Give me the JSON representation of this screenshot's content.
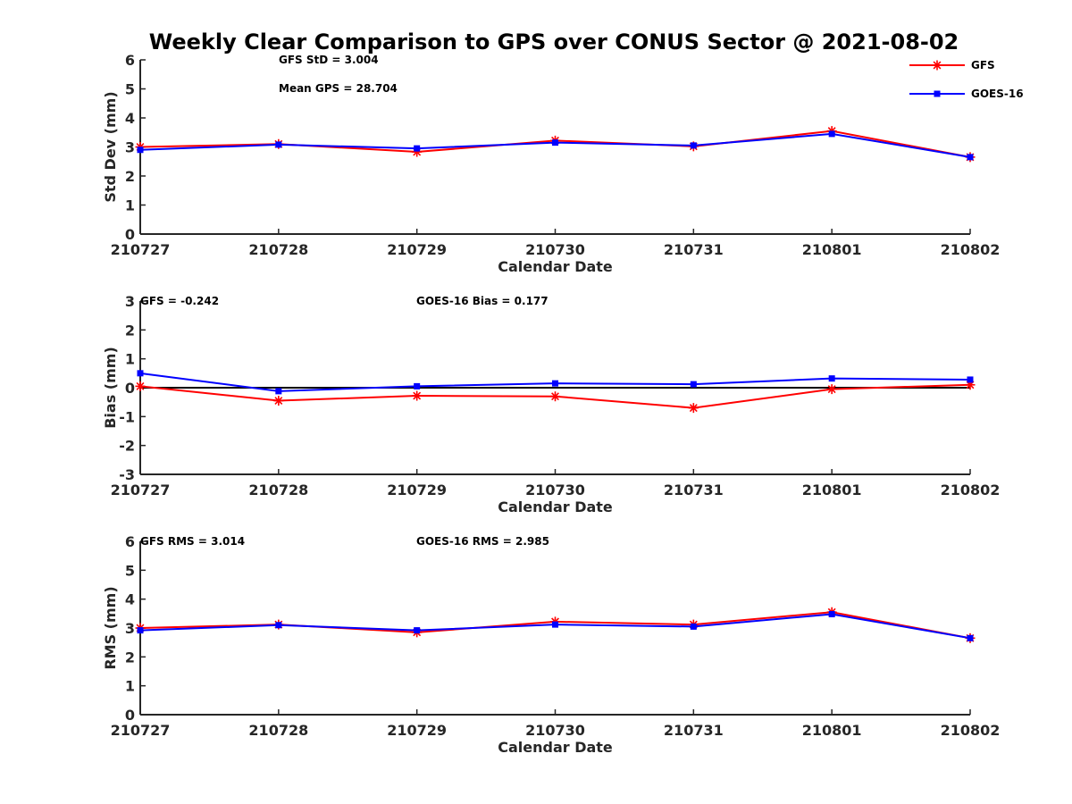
{
  "title": "Weekly Clear Comparison to GPS over CONUS Sector @ 2021-08-02",
  "colors": {
    "gfs": "#ff0000",
    "goes": "#0000ff",
    "zero_line": "#000000",
    "axis": "#262626"
  },
  "legend": {
    "position": "top-right",
    "entries": [
      "GFS",
      "GOES-16"
    ]
  },
  "chart_data": [
    {
      "type": "line",
      "id": "std",
      "ylabel": "Std Dev (mm)",
      "xlabel": "Calendar Date",
      "categories": [
        "210727",
        "210728",
        "210729",
        "210730",
        "210731",
        "210801",
        "210802"
      ],
      "ylim": [
        0,
        6
      ],
      "yticks": [
        "0",
        "1",
        "2",
        "3",
        "4",
        "5",
        "6"
      ],
      "series": [
        {
          "name": "GFS",
          "values": [
            3.0,
            3.1,
            2.83,
            3.22,
            3.02,
            3.55,
            2.65
          ]
        },
        {
          "name": "GOES-16",
          "values": [
            2.9,
            3.08,
            2.95,
            3.15,
            3.05,
            3.45,
            2.65
          ]
        }
      ],
      "annotations": [
        "GFS StD = 3.004",
        "Mean GPS = 28.704"
      ]
    },
    {
      "type": "line",
      "id": "bias",
      "ylabel": "Bias (mm)",
      "xlabel": "Calendar Date",
      "categories": [
        "210727",
        "210728",
        "210729",
        "210730",
        "210731",
        "210801",
        "210802"
      ],
      "ylim": [
        -3,
        3
      ],
      "yticks": [
        "-3",
        "-2",
        "-1",
        "0",
        "1",
        "2",
        "3"
      ],
      "zero_line": true,
      "series": [
        {
          "name": "GFS",
          "values": [
            0.05,
            -0.45,
            -0.28,
            -0.3,
            -0.7,
            -0.05,
            0.1
          ]
        },
        {
          "name": "GOES-16",
          "values": [
            0.5,
            -0.12,
            0.05,
            0.15,
            0.12,
            0.32,
            0.28
          ]
        }
      ],
      "annotations": [
        "GFS = -0.242",
        "GOES-16 Bias  = 0.177"
      ]
    },
    {
      "type": "line",
      "id": "rms",
      "ylabel": "RMS (mm)",
      "xlabel": "Calendar Date",
      "categories": [
        "210727",
        "210728",
        "210729",
        "210730",
        "210731",
        "210801",
        "210802"
      ],
      "ylim": [
        0,
        6
      ],
      "yticks": [
        "0",
        "1",
        "2",
        "3",
        "4",
        "5",
        "6"
      ],
      "series": [
        {
          "name": "GFS",
          "values": [
            3.0,
            3.12,
            2.85,
            3.22,
            3.12,
            3.55,
            2.65
          ]
        },
        {
          "name": "GOES-16",
          "values": [
            2.92,
            3.1,
            2.92,
            3.12,
            3.05,
            3.48,
            2.65
          ]
        }
      ],
      "annotations": [
        "GFS RMS = 3.014",
        "GOES-16 RMS = 2.985"
      ]
    }
  ]
}
